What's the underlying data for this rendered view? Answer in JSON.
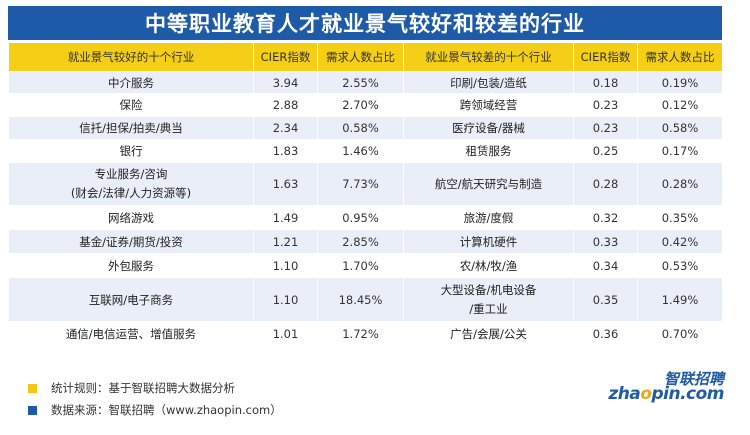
{
  "title": "中等职业教育人才就业景气较好和较差的行业",
  "headers": {
    "good_industry": "就业景气较好的十个行业",
    "good_cier": "CIER指数",
    "good_ratio": "需求人数占比",
    "bad_industry": "就业景气较差的十个行业",
    "bad_cier": "CIER指数",
    "bad_ratio": "需求人数占比"
  },
  "rows": [
    {
      "good": "中介服务",
      "good_cier": "3.94",
      "good_ratio": "2.55%",
      "bad": "印刷/包装/造纸",
      "bad_cier": "0.18",
      "bad_ratio": "0.19%"
    },
    {
      "good": "保险",
      "good_cier": "2.88",
      "good_ratio": "2.70%",
      "bad": "跨领域经营",
      "bad_cier": "0.23",
      "bad_ratio": "0.12%"
    },
    {
      "good": "信托/担保/拍卖/典当",
      "good_cier": "2.34",
      "good_ratio": "0.58%",
      "bad": "医疗设备/器械",
      "bad_cier": "0.23",
      "bad_ratio": "0.58%"
    },
    {
      "good": "银行",
      "good_cier": "1.83",
      "good_ratio": "1.46%",
      "bad": "租赁服务",
      "bad_cier": "0.25",
      "bad_ratio": "0.17%"
    },
    {
      "good": "专业服务/咨询",
      "good2": "(财会/法律/人力资源等)",
      "good_cier": "1.63",
      "good_ratio": "7.73%",
      "bad": "航空/航天研究与制造",
      "bad_cier": "0.28",
      "bad_ratio": "0.28%"
    },
    {
      "good": "网络游戏",
      "good_cier": "1.49",
      "good_ratio": "0.95%",
      "bad": "旅游/度假",
      "bad_cier": "0.32",
      "bad_ratio": "0.35%"
    },
    {
      "good": "基金/证券/期货/投资",
      "good_cier": "1.21",
      "good_ratio": "2.85%",
      "bad": "计算机硬件",
      "bad_cier": "0.33",
      "bad_ratio": "0.42%"
    },
    {
      "good": "外包服务",
      "good_cier": "1.10",
      "good_ratio": "1.70%",
      "bad": "农/林/牧/渔",
      "bad_cier": "0.34",
      "bad_ratio": "0.53%"
    },
    {
      "good": "互联网/电子商务",
      "good_cier": "1.10",
      "good_ratio": "18.45%",
      "bad": "大型设备/机电设备",
      "bad2": "/重工业",
      "bad_cier": "0.35",
      "bad_ratio": "1.49%"
    },
    {
      "good": "通信/电信运营、增值服务",
      "good_cier": "1.01",
      "good_ratio": "1.72%",
      "bad": "广告/会展/公关",
      "bad_cier": "0.36",
      "bad_ratio": "0.70%"
    }
  ],
  "footer": {
    "rule": "统计规则：基于智联招聘大数据分析",
    "source": "数据来源：智联招聘（www.zhaopin.com）",
    "rule_color": "#f5c518",
    "source_color": "#1d5aa8"
  },
  "logo": {
    "cn": "智联招聘",
    "en_pre": "zha",
    "en_accent": "o",
    "en_post": "pin.com"
  }
}
